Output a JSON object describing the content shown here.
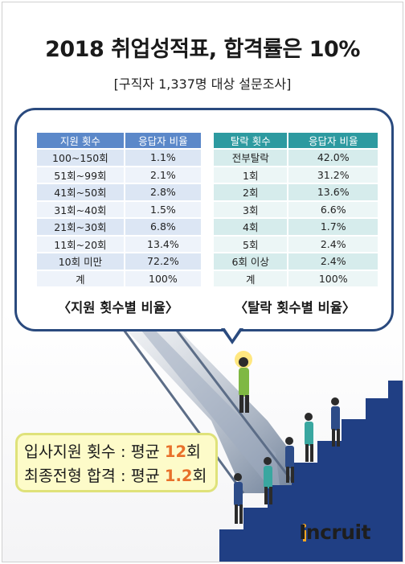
{
  "header": {
    "title": "2018 취업성적표, 합격률은 10%",
    "subtitle": "[구직자 1,337명 대상 설문조사]"
  },
  "table_apply": {
    "headers": [
      "지원 횟수",
      "응답자 비율"
    ],
    "rows": [
      [
        "100~150회",
        "1.1%"
      ],
      [
        "51회~99회",
        "2.1%"
      ],
      [
        "41회~50회",
        "2.8%"
      ],
      [
        "31회~40회",
        "1.5%"
      ],
      [
        "21회~30회",
        "6.8%"
      ],
      [
        "11회~20회",
        "13.4%"
      ],
      [
        "10회 미만",
        "72.2%"
      ],
      [
        "계",
        "100%"
      ]
    ],
    "caption": "〈지원 횟수별 비율〉"
  },
  "table_fail": {
    "headers": [
      "탈락 횟수",
      "응답자 비율"
    ],
    "rows": [
      [
        "전부탈락",
        "42.0%"
      ],
      [
        "1회",
        "31.2%"
      ],
      [
        "2회",
        "13.6%"
      ],
      [
        "3회",
        "6.6%"
      ],
      [
        "4회",
        "1.7%"
      ],
      [
        "5회",
        "2.4%"
      ],
      [
        "6회 이상",
        "2.4%"
      ],
      [
        "계",
        "100%"
      ]
    ],
    "caption": "〈탈락 횟수별 비율〉"
  },
  "stats": {
    "line1_label": "입사지원 횟수 : 평균 ",
    "line1_value": "12",
    "line1_unit": "회",
    "line2_label": "최종전형 합격 : 평균 ",
    "line2_value": "1.2",
    "line2_unit": "회"
  },
  "brand": {
    "logo_text": "Incruit",
    "logo_icon": "incruit-logo-icon"
  },
  "colors": {
    "panel_border": "#2a4a7e",
    "table1_header": "#5b88c9",
    "table2_header": "#2d9aa0",
    "highlight": "#e8702a",
    "stats_bg": "#fdfbc9"
  }
}
